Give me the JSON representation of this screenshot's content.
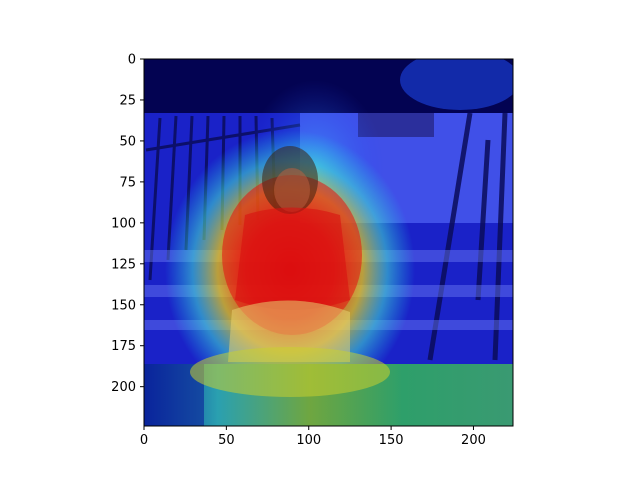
{
  "chart_data": {
    "type": "heatmap",
    "title": "",
    "xlabel": "",
    "ylabel": "",
    "xlim": [
      0,
      224
    ],
    "ylim": [
      224,
      0
    ],
    "x_ticks": [
      0,
      50,
      100,
      150,
      200
    ],
    "y_ticks": [
      0,
      25,
      50,
      75,
      100,
      125,
      150,
      175,
      200
    ],
    "x_tick_labels": [
      "0",
      "50",
      "100",
      "150",
      "200"
    ],
    "y_tick_labels": [
      "0",
      "25",
      "50",
      "75",
      "100",
      "125",
      "150",
      "175",
      "200"
    ],
    "colormap": "jet",
    "overlay": "attention heatmap over photo of a woman in a red sweater seated on outdoor steps",
    "colors": {
      "low": "#00008b",
      "mid": "#1ad6e6",
      "high": "#e60000"
    }
  }
}
